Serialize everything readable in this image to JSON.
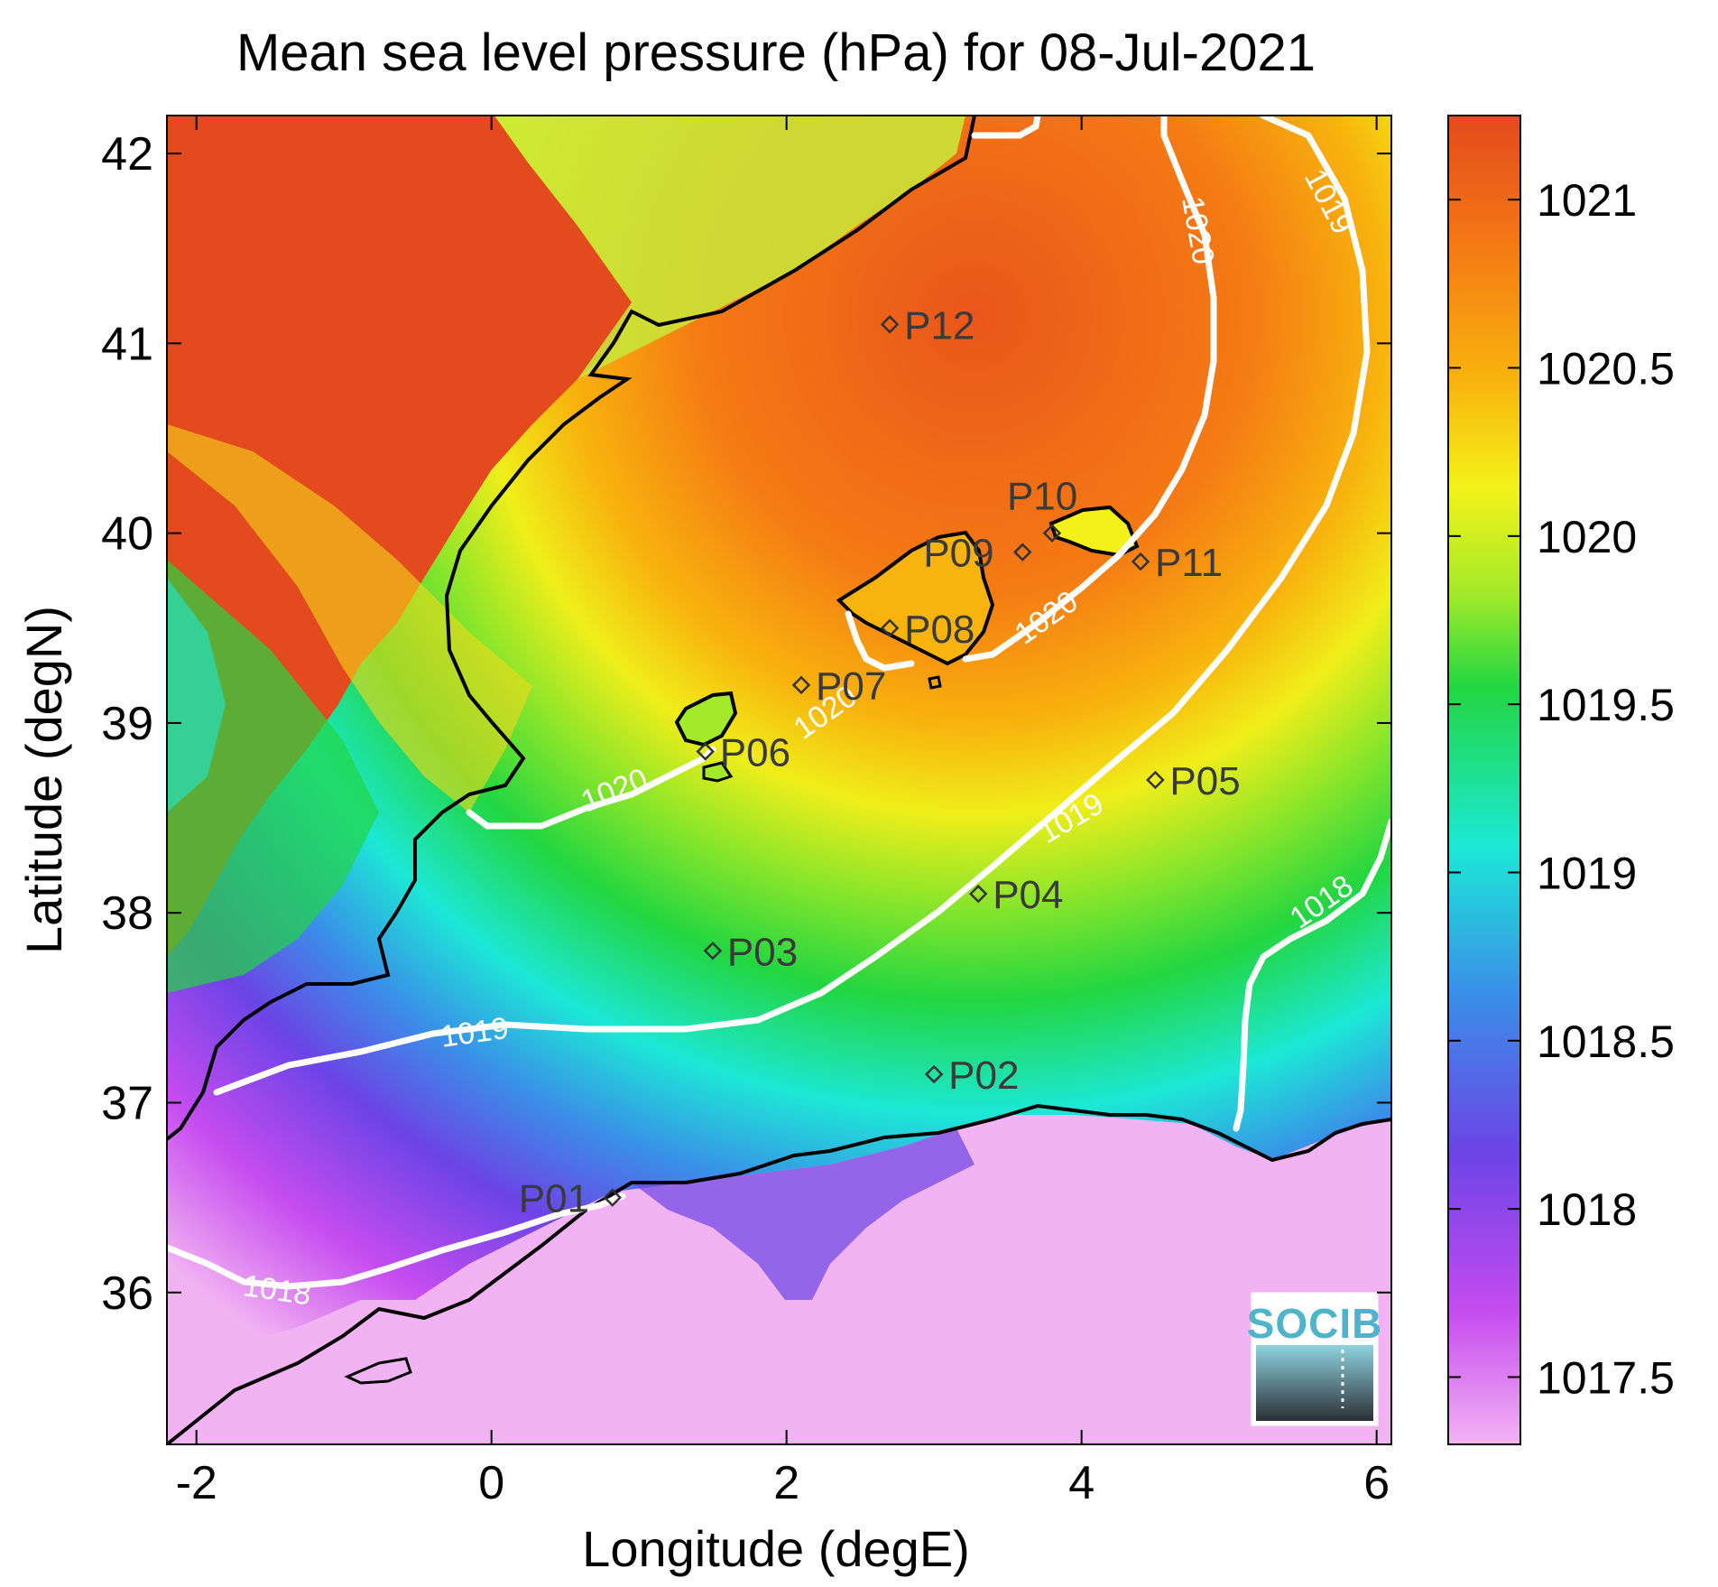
{
  "title": "Mean sea level pressure (hPa) for 08-Jul-2021",
  "axes": {
    "xlabel": "Longitude (degE)",
    "ylabel": "Latitude (degN)",
    "xlim": [
      -2.2,
      6.1
    ],
    "ylim": [
      35.2,
      42.2
    ],
    "xticks": [
      -2,
      0,
      2,
      4,
      6
    ],
    "xtick_labels": [
      "-2",
      "0",
      "2",
      "4",
      "6"
    ],
    "yticks": [
      36,
      37,
      38,
      39,
      40,
      41,
      42
    ],
    "ytick_labels": [
      "36",
      "37",
      "38",
      "39",
      "40",
      "41",
      "42"
    ]
  },
  "colorbar": {
    "min": 1017.3,
    "max": 1021.25,
    "ticks": [
      1017.5,
      1018,
      1018.5,
      1019,
      1019.5,
      1020,
      1020.5,
      1021
    ],
    "tick_labels": [
      "1017.5",
      "1018",
      "1018.5",
      "1019",
      "1019.5",
      "1020",
      "1020.5",
      "1021"
    ],
    "colors": [
      "#f2b3f2",
      "#c64cf0",
      "#6c44e6",
      "#3a8fe8",
      "#1ce8d6",
      "#22d641",
      "#a3ea2a",
      "#f4f21a",
      "#f8b40d",
      "#f57a14",
      "#e34a1d"
    ]
  },
  "stations": [
    {
      "label": "P01",
      "lon": 0.82,
      "lat": 36.5
    },
    {
      "label": "P02",
      "lon": 3.0,
      "lat": 37.15
    },
    {
      "label": "P03",
      "lon": 1.5,
      "lat": 37.8
    },
    {
      "label": "P04",
      "lon": 3.3,
      "lat": 38.1
    },
    {
      "label": "P05",
      "lon": 4.5,
      "lat": 38.7
    },
    {
      "label": "P06",
      "lon": 1.45,
      "lat": 38.85
    },
    {
      "label": "P07",
      "lon": 2.1,
      "lat": 39.2
    },
    {
      "label": "P08",
      "lon": 2.7,
      "lat": 39.5
    },
    {
      "label": "P09",
      "lon": 3.6,
      "lat": 39.9
    },
    {
      "label": "P10",
      "lon": 3.8,
      "lat": 40.0
    },
    {
      "label": "P11",
      "lon": 4.4,
      "lat": 39.85
    },
    {
      "label": "P12",
      "lon": 2.7,
      "lat": 41.1
    }
  ],
  "contour_labels": [
    "1020",
    "1020",
    "1020",
    "1020",
    "1019",
    "1019",
    "1019",
    "1018",
    "1018"
  ],
  "logo": {
    "text": "SOCIB"
  },
  "colors": {
    "contour": "#ffffff",
    "coastline": "#000000",
    "land_high": "#e34a1d"
  }
}
